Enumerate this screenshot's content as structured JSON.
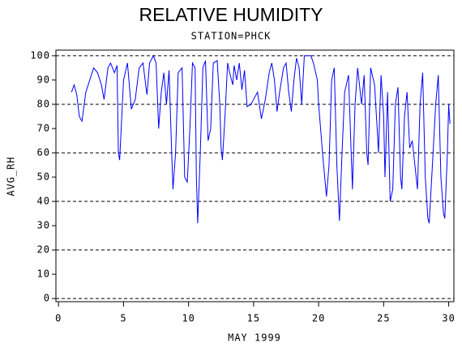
{
  "chart_data": {
    "type": "line",
    "title": "RELATIVE HUMIDITY",
    "subtitle": "STATION=PHCK",
    "x_label": "MAY 1999",
    "y_label": "AVG_RH",
    "x": [
      1.0,
      1.2,
      1.4,
      1.6,
      1.8,
      2.1,
      2.4,
      2.7,
      3.0,
      3.3,
      3.5,
      3.8,
      4.0,
      4.3,
      4.5,
      4.6,
      4.7,
      5.0,
      5.3,
      5.6,
      5.9,
      6.2,
      6.5,
      6.7,
      6.8,
      7.0,
      7.3,
      7.5,
      7.7,
      7.9,
      8.1,
      8.3,
      8.5,
      8.7,
      8.8,
      9.0,
      9.2,
      9.5,
      9.7,
      9.9,
      10.1,
      10.3,
      10.5,
      10.6,
      10.7,
      10.9,
      11.1,
      11.3,
      11.5,
      11.7,
      11.9,
      12.2,
      12.4,
      12.5,
      12.6,
      12.8,
      13.0,
      13.2,
      13.4,
      13.5,
      13.7,
      13.9,
      14.1,
      14.3,
      14.5,
      14.8,
      15.0,
      15.3,
      15.6,
      15.9,
      16.2,
      16.4,
      16.6,
      16.8,
      17.0,
      17.3,
      17.5,
      17.7,
      17.9,
      18.1,
      18.3,
      18.5,
      18.7,
      18.9,
      19.2,
      19.4,
      19.6,
      19.9,
      20.0,
      20.3,
      20.6,
      20.8,
      21.0,
      21.2,
      21.4,
      21.6,
      21.8,
      22.0,
      22.3,
      22.5,
      22.6,
      22.8,
      23.0,
      23.3,
      23.5,
      23.7,
      23.8,
      24.0,
      24.3,
      24.5,
      24.6,
      24.8,
      25.0,
      25.1,
      25.3,
      25.5,
      25.7,
      25.9,
      26.1,
      26.3,
      26.4,
      26.6,
      26.8,
      27.0,
      27.2,
      27.4,
      27.6,
      27.8,
      28.0,
      28.2,
      28.4,
      28.5,
      28.8,
      29.0,
      29.2,
      29.4,
      29.6,
      29.7,
      29.9,
      30.0,
      30.1
    ],
    "series": [
      {
        "name": "AVG_RH",
        "color": "#0000ff",
        "values": [
          85,
          88,
          84,
          75,
          73,
          85,
          90,
          95,
          93,
          88,
          82,
          95,
          97,
          93,
          96,
          60,
          57,
          90,
          97,
          78,
          82,
          95,
          97,
          88,
          84,
          97,
          100,
          97,
          70,
          85,
          93,
          80,
          94,
          60,
          45,
          60,
          93,
          95,
          50,
          48,
          70,
          97,
          95,
          50,
          31,
          60,
          95,
          98,
          65,
          70,
          97,
          98,
          80,
          62,
          57,
          75,
          97,
          92,
          88,
          96,
          90,
          97,
          86,
          94,
          79,
          80,
          82,
          85,
          74,
          82,
          93,
          97,
          90,
          77,
          85,
          95,
          97,
          85,
          77,
          90,
          99,
          95,
          80,
          100,
          100,
          100,
          97,
          90,
          80,
          60,
          42,
          55,
          90,
          95,
          55,
          32,
          60,
          85,
          92,
          60,
          45,
          80,
          95,
          80,
          92,
          60,
          55,
          95,
          88,
          70,
          60,
          92,
          75,
          50,
          85,
          40,
          45,
          80,
          87,
          50,
          45,
          75,
          85,
          62,
          65,
          55,
          45,
          80,
          93,
          50,
          33,
          31,
          60,
          80,
          92,
          50,
          35,
          33,
          60,
          80,
          72
        ]
      }
    ],
    "xlim": [
      -0.2,
      30.4
    ],
    "ylim": [
      -1.3,
      102.3
    ],
    "xticks": [
      0,
      5,
      10,
      15,
      20,
      25,
      30
    ],
    "yticks": [
      0,
      10,
      20,
      30,
      40,
      50,
      60,
      70,
      80,
      90,
      100
    ],
    "grid_y": [
      0,
      20,
      40,
      60,
      80,
      100
    ]
  }
}
